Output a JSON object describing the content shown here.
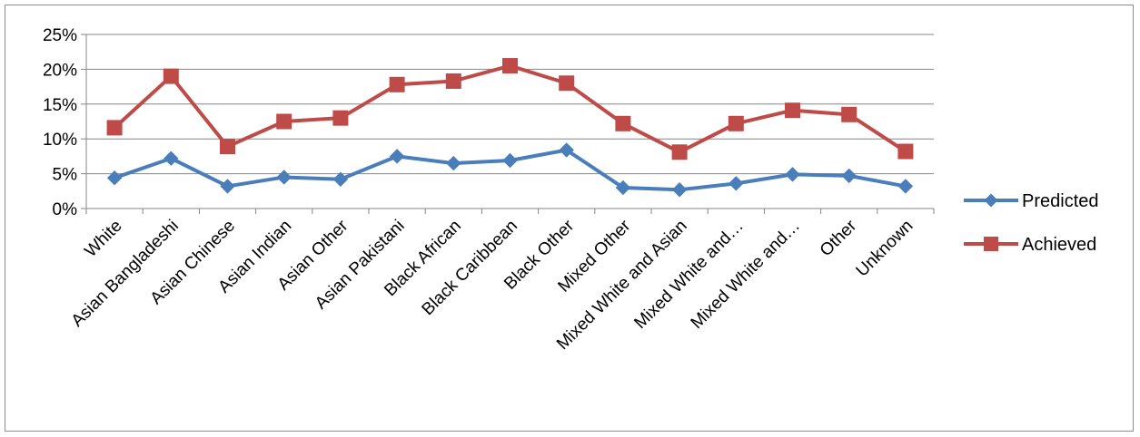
{
  "chart_data": {
    "type": "line",
    "categories": [
      "White",
      "Asian Bangladeshi",
      "Asian Chinese",
      "Asian Indian",
      "Asian Other",
      "Asian Pakistani",
      "Black African",
      "Black Caribbean",
      "Black Other",
      "Mixed Other",
      "Mixed White and Asian",
      "Mixed White and…",
      "Mixed White and…",
      "Other",
      "Unknown"
    ],
    "y_ticks": [
      "0%",
      "5%",
      "10%",
      "15%",
      "20%",
      "25%"
    ],
    "ylim": [
      0,
      25
    ],
    "grid": true,
    "legend_position": "right",
    "series": [
      {
        "name": "Predicted",
        "color": "#4a7ebb",
        "marker": "diamond",
        "values": [
          4.4,
          7.2,
          3.2,
          4.5,
          4.2,
          7.5,
          6.5,
          6.9,
          8.4,
          3.0,
          2.7,
          3.6,
          4.9,
          4.7,
          3.2
        ]
      },
      {
        "name": "Achieved",
        "color": "#be4b48",
        "marker": "square",
        "values": [
          11.6,
          19.0,
          8.9,
          12.5,
          13.0,
          17.8,
          18.3,
          20.5,
          18.0,
          12.2,
          8.1,
          12.2,
          14.1,
          13.5,
          8.2
        ]
      }
    ]
  }
}
